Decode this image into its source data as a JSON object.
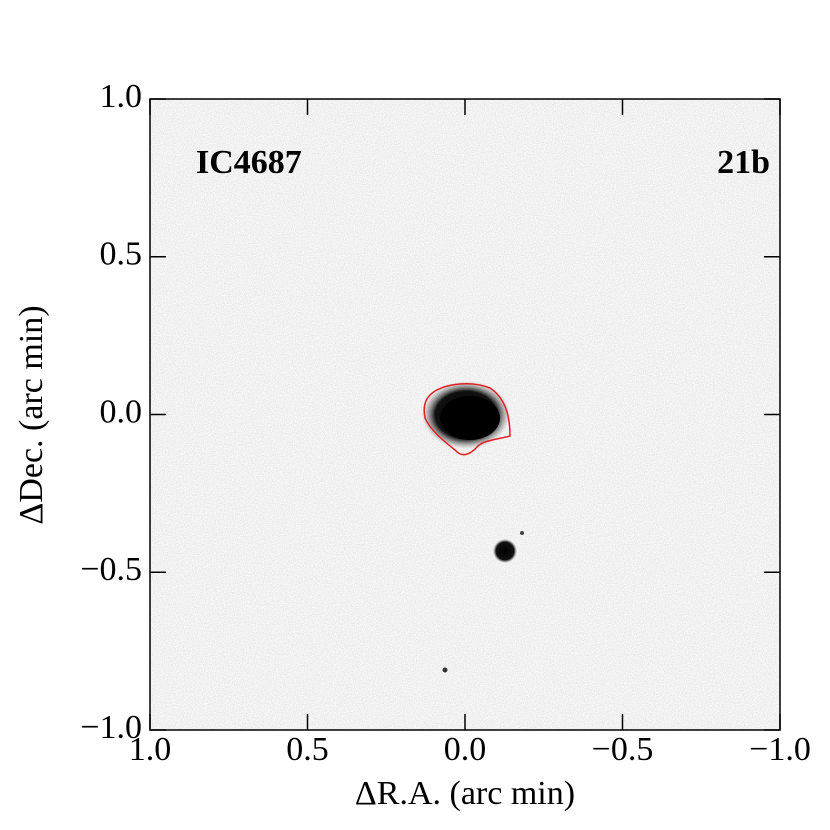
{
  "chart_data": {
    "type": "image",
    "annotations": [
      "IC4687",
      "21b"
    ],
    "xlabel": "ΔR.A. (arc min)",
    "ylabel": "ΔDec. (arc min)",
    "xlim": [
      1.0,
      -1.0
    ],
    "ylim": [
      -1.0,
      1.0
    ],
    "xticks": [
      {
        "value": 1.0,
        "label": "1.0"
      },
      {
        "value": 0.5,
        "label": "0.5"
      },
      {
        "value": 0.0,
        "label": "0.0"
      },
      {
        "value": -0.5,
        "label": "−0.5"
      },
      {
        "value": -1.0,
        "label": "−1.0"
      }
    ],
    "yticks": [
      {
        "value": -1.0,
        "label": "−1.0"
      },
      {
        "value": -0.5,
        "label": "−0.5"
      },
      {
        "value": 0.0,
        "label": "0.0"
      },
      {
        "value": 0.5,
        "label": "0.5"
      },
      {
        "value": 1.0,
        "label": "1.0"
      }
    ],
    "contour_color": "#e02020"
  }
}
